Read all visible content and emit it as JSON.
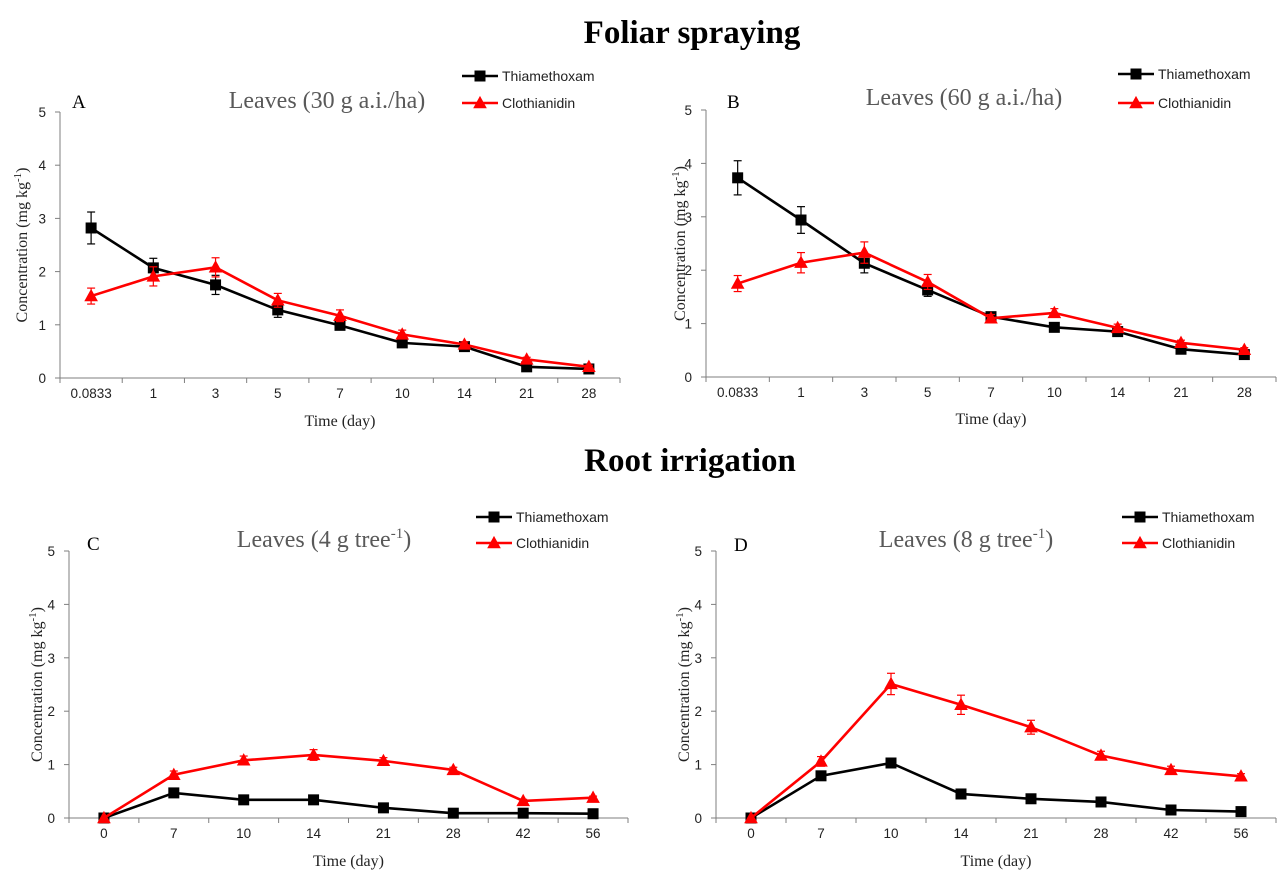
{
  "colors": {
    "thiamethoxam": "#000000",
    "clothianidin": "#ff0000",
    "axis": "#7f7f7f"
  },
  "sections": [
    {
      "title": "Foliar spraying"
    },
    {
      "title": "Root irrigation"
    }
  ],
  "chart_data": [
    {
      "type": "line",
      "panel": "A",
      "title": "Leaves (30 g a.i./ha)",
      "xlabel": "Time (day)",
      "ylabel": "Concentration (mg kg-1)",
      "ylabel_unit_base": "Concentration (mg kg",
      "ylabel_unit_sup": "-1",
      "ylabel_close": ")",
      "ylim": [
        0,
        5
      ],
      "yticks": [
        "0",
        "1",
        "2",
        "3",
        "4",
        "5"
      ],
      "categories": [
        "0.0833",
        "1",
        "3",
        "5",
        "7",
        "10",
        "14",
        "21",
        "28"
      ],
      "legend_position": "top-right",
      "series": [
        {
          "name": "Thiamethoxam",
          "marker": "square",
          "values": [
            2.82,
            2.07,
            1.75,
            1.28,
            0.99,
            0.66,
            0.59,
            0.21,
            0.17
          ],
          "errors": [
            0.3,
            0.18,
            0.18,
            0.14,
            0.07,
            0.05,
            0.05,
            0.03,
            0.03
          ]
        },
        {
          "name": "Clothianidin",
          "marker": "triangle",
          "values": [
            1.54,
            1.91,
            2.08,
            1.46,
            1.17,
            0.82,
            0.63,
            0.35,
            0.21
          ],
          "errors": [
            0.15,
            0.18,
            0.18,
            0.13,
            0.11,
            0.08,
            0.05,
            0.04,
            0.03
          ]
        }
      ]
    },
    {
      "type": "line",
      "panel": "B",
      "title": "Leaves (60 g a.i./ha)",
      "xlabel": "Time (day)",
      "ylabel": "Concentration (mg kg-1)",
      "ylabel_unit_base": "Concentration (mg kg",
      "ylabel_unit_sup": "-1",
      "ylabel_close": ")",
      "ylim": [
        0,
        5
      ],
      "yticks": [
        "0",
        "1",
        "2",
        "3",
        "4",
        "5"
      ],
      "categories": [
        "0.0833",
        "1",
        "3",
        "5",
        "7",
        "10",
        "14",
        "21",
        "28"
      ],
      "legend_position": "top-right",
      "series": [
        {
          "name": "Thiamethoxam",
          "marker": "square",
          "values": [
            3.73,
            2.94,
            2.13,
            1.63,
            1.13,
            0.93,
            0.85,
            0.52,
            0.42
          ],
          "errors": [
            0.32,
            0.25,
            0.18,
            0.12,
            0.06,
            0.05,
            0.06,
            0.05,
            0.04
          ]
        },
        {
          "name": "Clothianidin",
          "marker": "triangle",
          "values": [
            1.75,
            2.14,
            2.33,
            1.78,
            1.1,
            1.2,
            0.92,
            0.64,
            0.51
          ],
          "errors": [
            0.15,
            0.19,
            0.2,
            0.14,
            0.07,
            0.08,
            0.07,
            0.05,
            0.04
          ]
        }
      ]
    },
    {
      "type": "line",
      "panel": "C",
      "title": "Leaves (4 g tree-1)",
      "title_base": "Leaves (4 g tree",
      "title_sup": "-1",
      "title_close": ")",
      "xlabel": "Time (day)",
      "ylabel": "Concentration (mg kg-1)",
      "ylabel_unit_base": "Concentration (mg kg",
      "ylabel_unit_sup": "-1",
      "ylabel_close": ")",
      "ylim": [
        0,
        5
      ],
      "yticks": [
        "0",
        "1",
        "2",
        "3",
        "4",
        "5"
      ],
      "categories": [
        "0",
        "7",
        "10",
        "14",
        "21",
        "28",
        "42",
        "56"
      ],
      "legend_position": "top-right",
      "series": [
        {
          "name": "Thiamethoxam",
          "marker": "square",
          "values": [
            0.0,
            0.47,
            0.34,
            0.34,
            0.19,
            0.09,
            0.09,
            0.08
          ],
          "errors": [
            0,
            0.04,
            0.03,
            0.03,
            0.02,
            0.02,
            0.02,
            0.02
          ]
        },
        {
          "name": "Clothianidin",
          "marker": "triangle",
          "values": [
            0.0,
            0.81,
            1.08,
            1.18,
            1.07,
            0.9,
            0.32,
            0.38
          ],
          "errors": [
            0,
            0.07,
            0.08,
            0.1,
            0.06,
            0.05,
            0.03,
            0.03
          ]
        }
      ]
    },
    {
      "type": "line",
      "panel": "D",
      "title": "Leaves (8 g tree-1)",
      "title_base": "Leaves (8 g tree",
      "title_sup": "-1",
      "title_close": ")",
      "xlabel": "Time (day)",
      "ylabel": "Concentration (mg kg-1)",
      "ylabel_unit_base": "Concentration (mg kg",
      "ylabel_unit_sup": "-1",
      "ylabel_close": ")",
      "ylim": [
        0,
        5
      ],
      "yticks": [
        "0",
        "1",
        "2",
        "3",
        "4",
        "5"
      ],
      "categories": [
        "0",
        "7",
        "10",
        "14",
        "21",
        "28",
        "42",
        "56"
      ],
      "legend_position": "top-right",
      "series": [
        {
          "name": "Thiamethoxam",
          "marker": "square",
          "values": [
            0.0,
            0.79,
            1.03,
            0.45,
            0.36,
            0.3,
            0.15,
            0.12
          ],
          "errors": [
            0,
            0.06,
            0.06,
            0.05,
            0.04,
            0.04,
            0.03,
            0.03
          ]
        },
        {
          "name": "Clothianidin",
          "marker": "triangle",
          "values": [
            0.0,
            1.06,
            2.51,
            2.12,
            1.7,
            1.17,
            0.9,
            0.78
          ],
          "errors": [
            0,
            0.09,
            0.2,
            0.18,
            0.13,
            0.08,
            0.07,
            0.05
          ]
        }
      ]
    }
  ]
}
